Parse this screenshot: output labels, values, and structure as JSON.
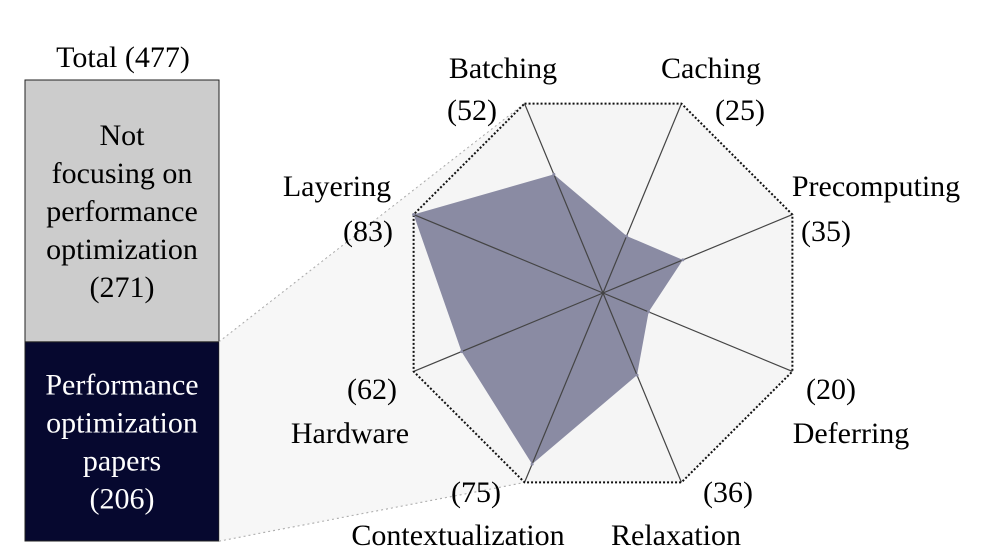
{
  "chart_data": [
    {
      "type": "bar",
      "title": "Total (477)",
      "stacked": true,
      "segments": [
        {
          "value": 271,
          "label_lines": [
            "Not",
            "focusing on",
            "performance",
            "optimization",
            "(271)"
          ],
          "color": "#cccccc",
          "text_color": "#000000"
        },
        {
          "value": 206,
          "label_lines": [
            "Performance",
            "optimization",
            "papers",
            "(206)"
          ],
          "color": "#06082f",
          "text_color": "#ffffff"
        }
      ]
    },
    {
      "type": "radar",
      "fill_color": "#8a8ba3",
      "background_color": "#f5f5f5",
      "axes": [
        {
          "name": "Batching",
          "count": "(52)",
          "value": 52
        },
        {
          "name": "Caching",
          "count": "(25)",
          "value": 25
        },
        {
          "name": "Precomputing",
          "count": "(35)",
          "value": 35
        },
        {
          "name": "Deferring",
          "count": "(20)",
          "value": 20
        },
        {
          "name": "Relaxation",
          "count": "(36)",
          "value": 36
        },
        {
          "name": "Contextualization",
          "count": "(75)",
          "value": 75
        },
        {
          "name": "Hardware",
          "count": "(62)",
          "value": 62
        },
        {
          "name": "Layering",
          "count": "(83)",
          "value": 83
        }
      ],
      "max": 83
    }
  ]
}
